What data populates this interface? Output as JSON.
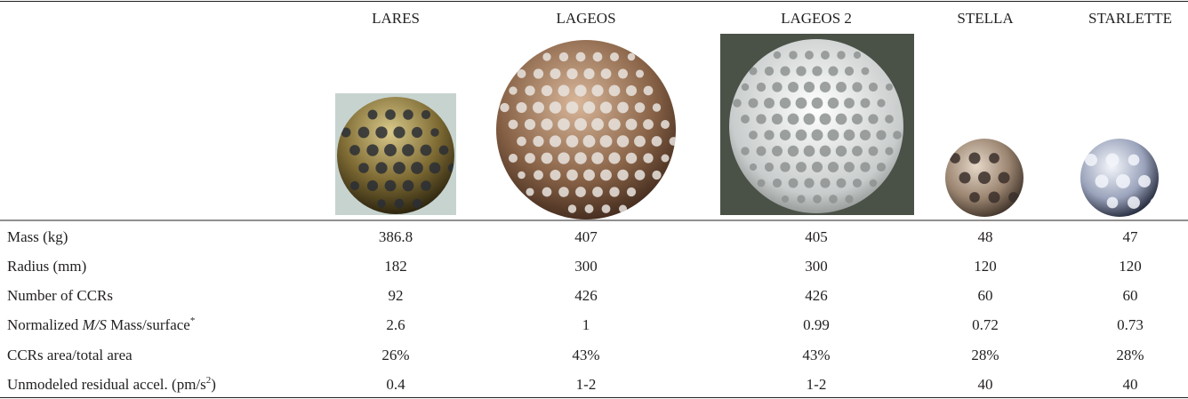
{
  "table": {
    "columns": [
      "LARES",
      "LAGEOS",
      "LAGEOS 2",
      "STELLA",
      "STARLETTE"
    ],
    "rows": [
      {
        "label": [
          "Mass (kg)"
        ],
        "cells": [
          "386.8",
          "407",
          "405",
          "48",
          "47"
        ]
      },
      {
        "label": [
          "Radius (mm)"
        ],
        "cells": [
          "182",
          "300",
          "300",
          "120",
          "120"
        ]
      },
      {
        "label": [
          "Number of CCRs"
        ],
        "cells": [
          "92",
          "426",
          "426",
          "60",
          "60"
        ]
      },
      {
        "label": [
          "Normalized ",
          "M/S",
          " Mass/surface",
          "*"
        ],
        "cells": [
          "2.6",
          "1",
          "0.99",
          "0.72",
          "0.73"
        ]
      },
      {
        "label": [
          "CCRs area/total area"
        ],
        "cells": [
          "26%",
          "43%",
          "43%",
          "28%",
          "28%"
        ]
      },
      {
        "label": [
          "Unmodeled residual accel. (pm/s",
          "2",
          ")"
        ],
        "cells": [
          "0.4",
          "1-2",
          "1-2",
          "40",
          "40"
        ]
      }
    ]
  }
}
